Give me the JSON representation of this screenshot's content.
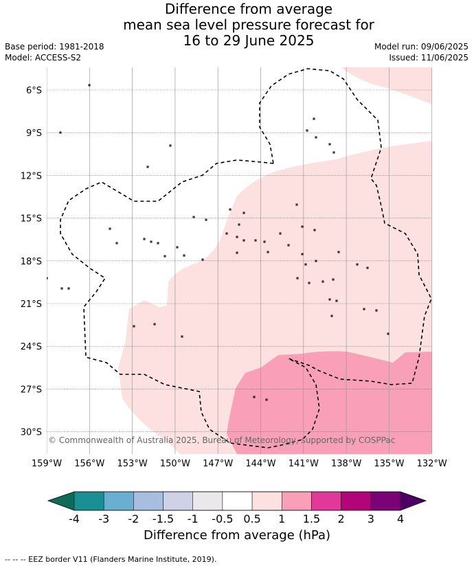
{
  "title": {
    "line1": "Difference from average",
    "line2": "mean sea level pressure forecast for",
    "line3": "16 to 29 June 2025"
  },
  "meta": {
    "base_period": "Base period: 1981-2018",
    "model": "Model: ACCESS-S2",
    "model_run": "Model run: 09/06/2025",
    "issued": "Issued: 11/06/2025"
  },
  "map": {
    "lat_ticks": [
      "6°S",
      "9°S",
      "12°S",
      "15°S",
      "18°S",
      "21°S",
      "24°S",
      "27°S",
      "30°S"
    ],
    "lon_ticks": [
      "159°W",
      "156°W",
      "153°W",
      "150°W",
      "147°W",
      "144°W",
      "141°W",
      "138°W",
      "135°W",
      "132°W"
    ],
    "copyright": "© Commonwealth of Australia 2025, Bureau of Meteorology, supported by COSPPac"
  },
  "colorbar": {
    "labels": [
      "-4",
      "-3",
      "-2",
      "-1.5",
      "-1",
      "-0.5",
      "0.5",
      "1",
      "1.5",
      "2",
      "3",
      "4"
    ],
    "colors": [
      "#1a8f94",
      "#6aaed2",
      "#a7bee0",
      "#cfd1e6",
      "#ebe8ec",
      "#ffffff",
      "#fde0e0",
      "#f9a0b8",
      "#e0399a",
      "#b30478",
      "#7b0277"
    ],
    "low_extend_color": "#0e6b5c",
    "high_extend_color": "#4c0063",
    "title": "Difference from average (hPa)"
  },
  "footer": "-- -- -- EEZ border V11 (Flanders Marine Institute, 2019)."
}
